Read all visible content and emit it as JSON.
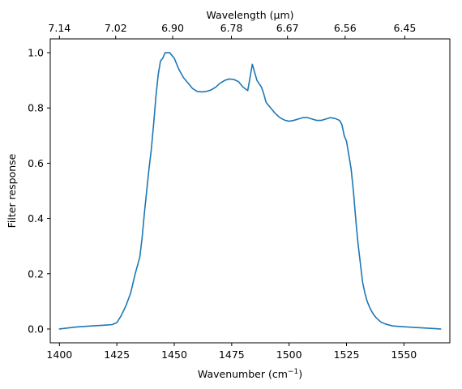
{
  "chart_data": {
    "type": "line",
    "title": "",
    "xlabel": "Wavenumber",
    "xlabel_unit": "(cm⁻¹)",
    "ylabel": "Filter response",
    "secondary_xlabel": "Wavelength (μm)",
    "xlim": [
      1396,
      1570
    ],
    "ylim": [
      -0.05,
      1.05
    ],
    "grid": false,
    "legend": "none",
    "line_color": "#1f77b4",
    "x_ticks": [
      1400,
      1425,
      1450,
      1475,
      1500,
      1525,
      1550
    ],
    "x_tick_labels": [
      "1400",
      "1425",
      "1450",
      "1475",
      "1500",
      "1525",
      "1550"
    ],
    "y_ticks": [
      0.0,
      0.2,
      0.4,
      0.6,
      0.8,
      1.0
    ],
    "y_tick_labels": [
      "0.0",
      "0.2",
      "0.4",
      "0.6",
      "0.8",
      "1.0"
    ],
    "top_ticks": [
      {
        "label": "7.14",
        "wavenumber": 1400.0
      },
      {
        "label": "7.02",
        "wavenumber": 1424.5
      },
      {
        "label": "6.90",
        "wavenumber": 1449.3
      },
      {
        "label": "6.78",
        "wavenumber": 1474.9
      },
      {
        "label": "6.67",
        "wavenumber": 1499.3
      },
      {
        "label": "6.56",
        "wavenumber": 1524.4
      },
      {
        "label": "6.45",
        "wavenumber": 1550.4
      }
    ],
    "series": [
      {
        "x": [
          1400,
          1407,
          1414,
          1420,
          1423,
          1425,
          1427,
          1429,
          1431,
          1433,
          1435,
          1436,
          1437,
          1438,
          1439,
          1440,
          1441,
          1442,
          1443,
          1444,
          1445,
          1446,
          1447,
          1448,
          1449,
          1450,
          1451,
          1452,
          1454,
          1456,
          1458,
          1460,
          1462,
          1464,
          1466,
          1468,
          1470,
          1472,
          1474,
          1476,
          1478,
          1480,
          1482,
          1484,
          1486,
          1488,
          1489,
          1490,
          1492,
          1494,
          1496,
          1498,
          1500,
          1502,
          1504,
          1506,
          1508,
          1510,
          1512,
          1514,
          1516,
          1518,
          1520,
          1522,
          1523,
          1524,
          1525,
          1526,
          1527,
          1528,
          1529,
          1530,
          1531,
          1532,
          1533,
          1534,
          1535,
          1536,
          1537,
          1538,
          1540,
          1542,
          1545,
          1550,
          1558,
          1566
        ],
        "y": [
          0.0,
          0.007,
          0.011,
          0.014,
          0.016,
          0.023,
          0.05,
          0.085,
          0.13,
          0.2,
          0.26,
          0.33,
          0.42,
          0.5,
          0.58,
          0.65,
          0.74,
          0.84,
          0.92,
          0.97,
          0.98,
          1.0,
          1.0,
          1.0,
          0.99,
          0.98,
          0.96,
          0.94,
          0.91,
          0.89,
          0.87,
          0.86,
          0.858,
          0.86,
          0.865,
          0.875,
          0.89,
          0.9,
          0.905,
          0.903,
          0.895,
          0.875,
          0.863,
          0.958,
          0.9,
          0.875,
          0.85,
          0.82,
          0.8,
          0.78,
          0.765,
          0.756,
          0.752,
          0.755,
          0.76,
          0.765,
          0.765,
          0.76,
          0.755,
          0.755,
          0.76,
          0.765,
          0.762,
          0.755,
          0.74,
          0.7,
          0.68,
          0.63,
          0.58,
          0.5,
          0.4,
          0.31,
          0.24,
          0.17,
          0.13,
          0.1,
          0.08,
          0.063,
          0.05,
          0.04,
          0.025,
          0.018,
          0.011,
          0.008,
          0.004,
          0.0
        ]
      }
    ]
  }
}
